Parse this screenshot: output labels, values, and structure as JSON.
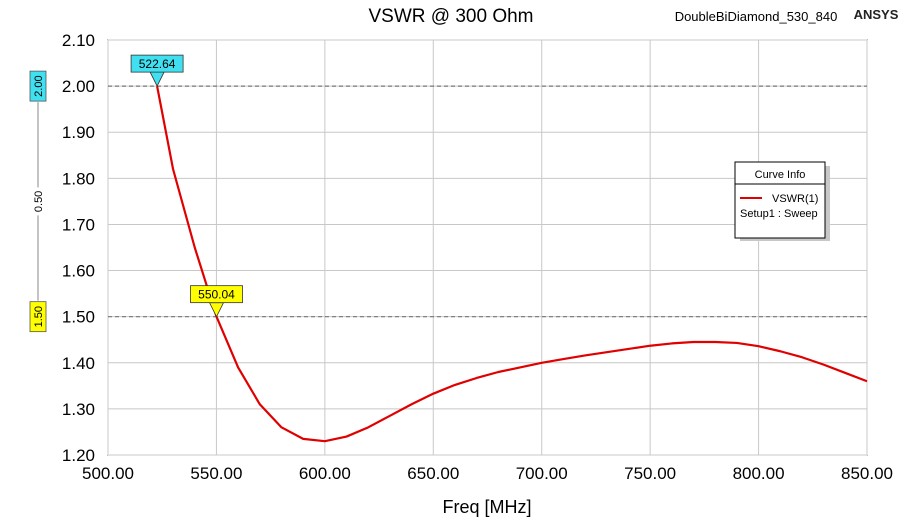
{
  "header": {
    "title": "VSWR @ 300 Ohm",
    "design_name": "DoubleBiDiamond_530_840",
    "brand": "ANSYS"
  },
  "chart_data": {
    "type": "line",
    "title": "VSWR @ 300 Ohm",
    "xlabel": "Freq [MHz]",
    "ylabel": "",
    "xlim": [
      500,
      850
    ],
    "ylim": [
      1.2,
      2.1
    ],
    "x_ticks": [
      "500.00",
      "550.00",
      "600.00",
      "650.00",
      "700.00",
      "750.00",
      "800.00",
      "850.00"
    ],
    "y_ticks": [
      "1.20",
      "1.30",
      "1.40",
      "1.50",
      "1.60",
      "1.70",
      "1.80",
      "1.90",
      "2.00",
      "2.10"
    ],
    "grid": true,
    "series": [
      {
        "name": "VSWR(1)",
        "color": "#e00000",
        "x": [
          522.64,
          530,
          540,
          550.04,
          560,
          570,
          580,
          590,
          600,
          610,
          620,
          630,
          640,
          650,
          660,
          670,
          680,
          690,
          700,
          710,
          720,
          730,
          740,
          750,
          760,
          770,
          780,
          790,
          800,
          810,
          820,
          830,
          840,
          850
        ],
        "y": [
          2.0,
          1.82,
          1.65,
          1.5,
          1.39,
          1.31,
          1.26,
          1.235,
          1.23,
          1.24,
          1.26,
          1.285,
          1.31,
          1.333,
          1.352,
          1.367,
          1.38,
          1.39,
          1.4,
          1.408,
          1.416,
          1.423,
          1.43,
          1.437,
          1.442,
          1.445,
          1.445,
          1.443,
          1.436,
          1.425,
          1.412,
          1.396,
          1.378,
          1.36
        ]
      }
    ],
    "markers": [
      {
        "label": "522.64",
        "x": 522.64,
        "y": 2.0,
        "color": "#40e0f0"
      },
      {
        "label": "550.04",
        "x": 550.04,
        "y": 1.5,
        "color": "#ffff00"
      }
    ],
    "reference_lines": [
      {
        "label": "2.00",
        "y": 2.0,
        "color": "#40e0f0"
      },
      {
        "label": "1.50",
        "y": 1.5,
        "color": "#ffff00"
      }
    ],
    "delta_label": "0.50",
    "legend": {
      "title": "Curve Info",
      "position": "right",
      "entries": [
        {
          "name": "VSWR(1)",
          "sub": "Setup1 : Sweep",
          "color": "#e00000"
        }
      ]
    }
  }
}
